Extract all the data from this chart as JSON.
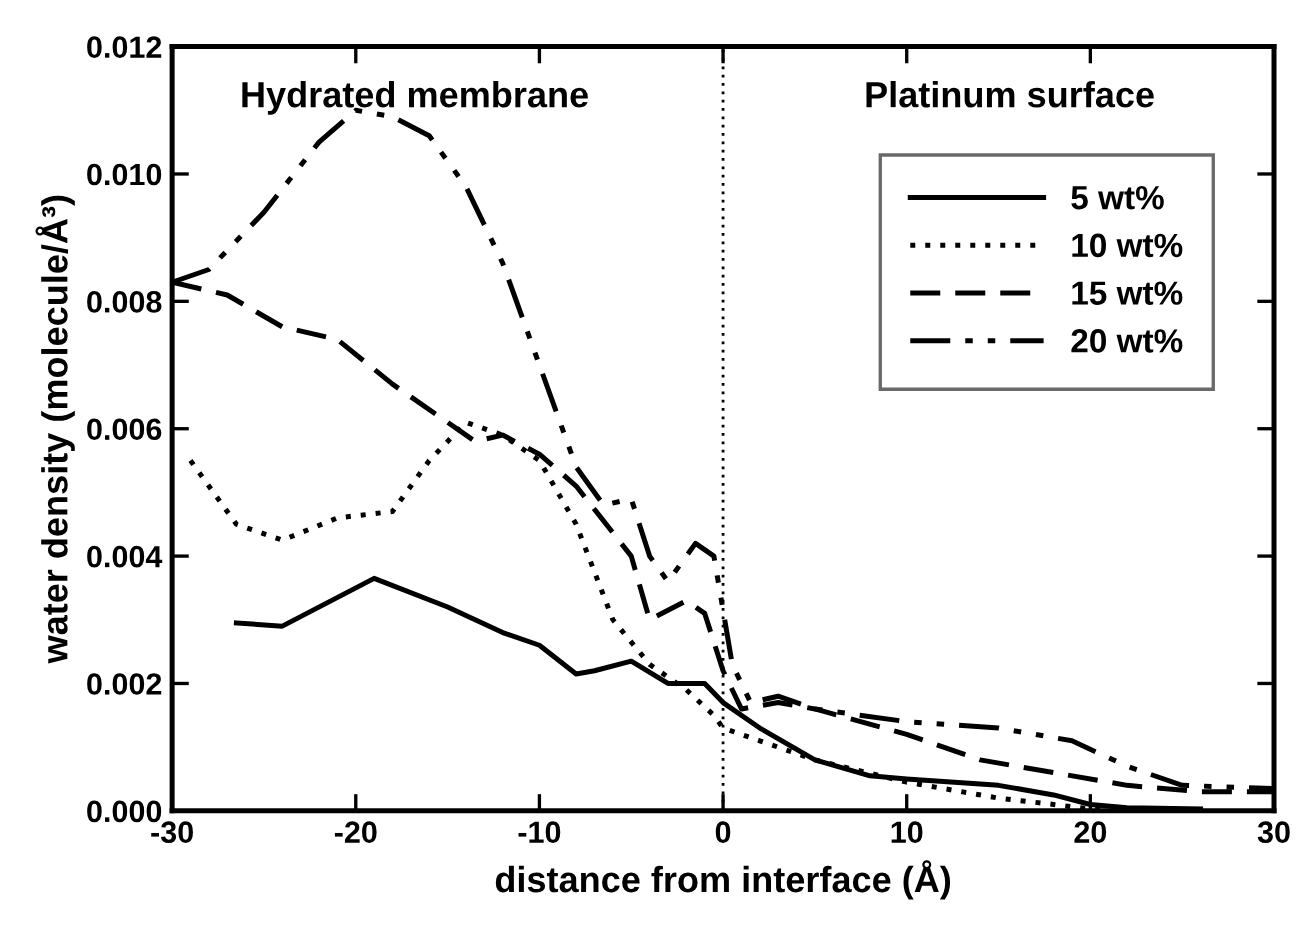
{
  "chart_data": {
    "type": "line",
    "xlabel": "distance from interface (Å)",
    "ylabel": "water density (molecule/Å³)",
    "xlim": [
      -30,
      30
    ],
    "xticks": [
      -30,
      -20,
      -10,
      0,
      10,
      20,
      30
    ],
    "ylim": [
      0,
      0.012
    ],
    "yticks": [
      {
        "value": 0,
        "label": "0.000"
      },
      {
        "value": 0.002,
        "label": "0.002"
      },
      {
        "value": 0.004,
        "label": "0.004"
      },
      {
        "value": 0.006,
        "label": "0.006"
      },
      {
        "value": 0.008,
        "label": "0.008"
      },
      {
        "value": 0.01,
        "label": "0.010"
      },
      {
        "value": 0.012,
        "label": "0.012"
      }
    ],
    "grid": false,
    "legend": "top right",
    "marker": "none",
    "ref_lines": [
      {
        "axis": "x",
        "value": 0,
        "line_style": "dotted",
        "color": "#000000"
      }
    ],
    "annotations": [
      "Hydrated membrane",
      "Platinum surface"
    ],
    "series": [
      {
        "name": "5 wt%",
        "color": "#000000",
        "line_style": "solid",
        "x": [
          -26.5,
          -24,
          -19,
          -15,
          -12,
          -10,
          -8,
          -7,
          -5,
          -3,
          -1,
          0,
          2,
          5,
          8,
          10,
          15,
          18,
          20,
          22,
          26
        ],
        "values": [
          0.00295,
          0.0029,
          0.00365,
          0.0032,
          0.0028,
          0.0026,
          0.00215,
          0.0022,
          0.00235,
          0.002,
          0.002,
          0.0017,
          0.0013,
          0.0008,
          0.00055,
          0.0005,
          0.0004,
          0.00025,
          0.0001,
          5e-05,
          3e-05
        ]
      },
      {
        "name": "10 wt%",
        "color": "#000000",
        "line_style": "dotted",
        "x": [
          -29,
          -26.5,
          -24,
          -21,
          -18,
          -16,
          -14,
          -12,
          -10,
          -8,
          -6,
          -4,
          -2,
          -0.5,
          0,
          2,
          5,
          10,
          15,
          18,
          20,
          22
        ],
        "values": [
          0.0055,
          0.0045,
          0.00425,
          0.0046,
          0.0047,
          0.0055,
          0.0061,
          0.0059,
          0.0055,
          0.0045,
          0.003,
          0.0023,
          0.0019,
          0.0015,
          0.0013,
          0.0011,
          0.0008,
          0.00045,
          0.0002,
          0.0001,
          3e-05,
          0
        ]
      },
      {
        "name": "15 wt%",
        "color": "#000000",
        "line_style": "dashed",
        "x": [
          -30,
          -27,
          -24,
          -21,
          -18,
          -15,
          -13.5,
          -12,
          -10,
          -8,
          -5,
          -4,
          -2,
          -1,
          0,
          1,
          3,
          5,
          10,
          14,
          18,
          22,
          26,
          30
        ],
        "values": [
          0.0083,
          0.0081,
          0.0076,
          0.0074,
          0.0067,
          0.0061,
          0.0058,
          0.0059,
          0.0056,
          0.0051,
          0.004,
          0.003,
          0.0033,
          0.0031,
          0.0022,
          0.0016,
          0.0017,
          0.0016,
          0.0012,
          0.0008,
          0.0006,
          0.0004,
          0.0003,
          0.0003
        ]
      },
      {
        "name": "20 wt%",
        "color": "#000000",
        "line_style": "dashdotdot",
        "x": [
          -30,
          -28,
          -25,
          -22,
          -20,
          -18,
          -16,
          -14,
          -12,
          -10,
          -8,
          -6.5,
          -5,
          -4,
          -3,
          -1.5,
          -0.5,
          0.5,
          1.5,
          3,
          5,
          10,
          15,
          19,
          22,
          25,
          30
        ],
        "values": [
          0.0083,
          0.0085,
          0.0094,
          0.0105,
          0.011,
          0.0109,
          0.0106,
          0.0098,
          0.0086,
          0.007,
          0.0054,
          0.0048,
          0.0049,
          0.004,
          0.0036,
          0.0042,
          0.004,
          0.0023,
          0.0017,
          0.0018,
          0.0016,
          0.0014,
          0.0013,
          0.0011,
          0.0007,
          0.0004,
          0.00035
        ]
      }
    ]
  }
}
